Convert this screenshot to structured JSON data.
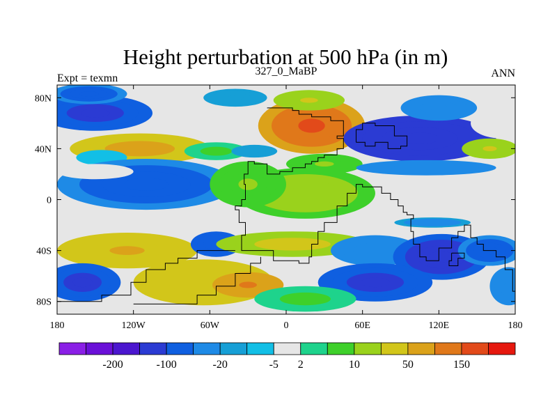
{
  "chart_data": {
    "type": "heatmap",
    "title": "Height perturbation at 500 hPa (in m)",
    "left_label": "Expt = texmn",
    "center_label": "327_0_MaBP",
    "right_label": "ANN",
    "xlim": [
      -180,
      180
    ],
    "ylim": [
      -90,
      90
    ],
    "x_ticks": [
      {
        "value": -180,
        "label": "180"
      },
      {
        "value": -120,
        "label": "120W"
      },
      {
        "value": -60,
        "label": "60W"
      },
      {
        "value": 0,
        "label": "0"
      },
      {
        "value": 60,
        "label": "60E"
      },
      {
        "value": 120,
        "label": "120E"
      },
      {
        "value": 180,
        "label": "180"
      }
    ],
    "y_ticks": [
      {
        "value": 80,
        "label": "80N"
      },
      {
        "value": 40,
        "label": "40N"
      },
      {
        "value": 0,
        "label": "0"
      },
      {
        "value": -40,
        "label": "40S"
      },
      {
        "value": -80,
        "label": "80S"
      }
    ],
    "colorbar": {
      "colors": [
        "#8a1fe6",
        "#6a10d8",
        "#4b16cf",
        "#2b3bd3",
        "#0f5fe0",
        "#1e8ae6",
        "#169fd6",
        "#12bfe6",
        "#e6e6e6",
        "#1ed38c",
        "#3ed02a",
        "#9ad21c",
        "#d2c61a",
        "#dba21a",
        "#e0781a",
        "#e24a1a",
        "#e6180e"
      ],
      "tick_labels": [
        "-200",
        "-100",
        "-20",
        "-5",
        "2",
        "10",
        "50",
        "150"
      ],
      "tick_after_index": [
        1,
        3,
        5,
        7,
        8,
        10,
        12,
        14
      ]
    },
    "field_series": [
      {
        "name": "blob",
        "lon": -150,
        "lat": 68,
        "rx": 45,
        "ry": 14,
        "value": -70
      },
      {
        "name": "blob",
        "lon": -155,
        "lat": 83,
        "rx": 30,
        "ry": 8,
        "value": -30
      },
      {
        "name": "blob",
        "lon": -40,
        "lat": 80,
        "rx": 25,
        "ry": 7,
        "value": -10
      },
      {
        "name": "blob",
        "lon": 20,
        "lat": 58,
        "rx": 42,
        "ry": 22,
        "value": 150
      },
      {
        "name": "blob",
        "lon": 18,
        "lat": 78,
        "rx": 28,
        "ry": 8,
        "value": 20
      },
      {
        "name": "blob",
        "lon": 105,
        "lat": 48,
        "rx": 60,
        "ry": 18,
        "value": -100
      },
      {
        "name": "blob",
        "lon": 120,
        "lat": 72,
        "rx": 30,
        "ry": 10,
        "value": -20
      },
      {
        "name": "blob",
        "lon": 170,
        "lat": 60,
        "rx": 25,
        "ry": 12,
        "value": 0
      },
      {
        "name": "blob",
        "lon": -115,
        "lat": 40,
        "rx": 55,
        "ry": 12,
        "value": 60
      },
      {
        "name": "blob",
        "lon": -145,
        "lat": 33,
        "rx": 20,
        "ry": 6,
        "value": -5
      },
      {
        "name": "blob",
        "lon": -55,
        "lat": 38,
        "rx": 25,
        "ry": 7,
        "value": 6
      },
      {
        "name": "blob",
        "lon": -25,
        "lat": 38,
        "rx": 18,
        "ry": 5,
        "value": -10
      },
      {
        "name": "blob",
        "lon": 160,
        "lat": 40,
        "rx": 22,
        "ry": 8,
        "value": 20
      },
      {
        "name": "blob",
        "lon": 30,
        "lat": 28,
        "rx": 30,
        "ry": 8,
        "value": 10
      },
      {
        "name": "blob",
        "lon": 110,
        "lat": 25,
        "rx": 55,
        "ry": 6,
        "value": -20
      },
      {
        "name": "blob",
        "lon": -110,
        "lat": 12,
        "rx": 70,
        "ry": 20,
        "value": -30
      },
      {
        "name": "blob",
        "lon": -150,
        "lat": 22,
        "rx": 30,
        "ry": 6,
        "value": 0
      },
      {
        "name": "blob",
        "lon": 15,
        "lat": 5,
        "rx": 55,
        "ry": 20,
        "value": 15
      },
      {
        "name": "blob",
        "lon": -30,
        "lat": 12,
        "rx": 30,
        "ry": 18,
        "value": 10
      },
      {
        "name": "blob",
        "lon": 130,
        "lat": -5,
        "rx": 50,
        "ry": 12,
        "value": 1
      },
      {
        "name": "blob",
        "lon": 115,
        "lat": -18,
        "rx": 30,
        "ry": 4,
        "value": -15
      },
      {
        "name": "blob",
        "lon": -125,
        "lat": -40,
        "rx": 55,
        "ry": 14,
        "value": 50
      },
      {
        "name": "blob",
        "lon": -55,
        "lat": -35,
        "rx": 20,
        "ry": 10,
        "value": -40
      },
      {
        "name": "blob",
        "lon": 5,
        "lat": -35,
        "rx": 60,
        "ry": 10,
        "value": 25
      },
      {
        "name": "blob",
        "lon": 70,
        "lat": -40,
        "rx": 35,
        "ry": 12,
        "value": -20
      },
      {
        "name": "blob",
        "lon": 125,
        "lat": -45,
        "rx": 25,
        "ry": 10,
        "value": 40
      },
      {
        "name": "blob",
        "lon": 122,
        "lat": -45,
        "rx": 38,
        "ry": 18,
        "value": -90
      },
      {
        "name": "blob",
        "lon": 160,
        "lat": -40,
        "rx": 25,
        "ry": 12,
        "value": -30
      },
      {
        "name": "blob",
        "lon": -65,
        "lat": -65,
        "rx": 55,
        "ry": 18,
        "value": 40
      },
      {
        "name": "blob",
        "lon": -30,
        "lat": -67,
        "rx": 28,
        "ry": 10,
        "value": 100
      },
      {
        "name": "blob",
        "lon": -160,
        "lat": -65,
        "rx": 30,
        "ry": 15,
        "value": -60
      },
      {
        "name": "blob",
        "lon": 70,
        "lat": -65,
        "rx": 45,
        "ry": 15,
        "value": -60
      },
      {
        "name": "blob",
        "lon": 175,
        "lat": -68,
        "rx": 15,
        "ry": 15,
        "value": -20
      },
      {
        "name": "blob",
        "lon": 15,
        "lat": -78,
        "rx": 40,
        "ry": 10,
        "value": 6
      }
    ],
    "continents": [
      {
        "name": "continent-north-america",
        "points": [
          [
            -15,
            72
          ],
          [
            -5,
            72
          ],
          [
            5,
            70
          ],
          [
            10,
            67
          ],
          [
            20,
            65
          ],
          [
            35,
            62
          ],
          [
            45,
            58
          ],
          [
            45,
            50
          ],
          [
            40,
            48
          ],
          [
            45,
            45
          ],
          [
            45,
            40
          ],
          [
            40,
            35
          ],
          [
            30,
            33
          ],
          [
            25,
            30
          ],
          [
            20,
            28
          ],
          [
            15,
            25
          ],
          [
            5,
            22
          ],
          [
            -5,
            20
          ],
          [
            -15,
            28
          ],
          [
            -25,
            30
          ],
          [
            -30,
            20
          ],
          [
            -33,
            12
          ],
          [
            -32,
            0
          ],
          [
            -35,
            -5
          ],
          [
            -40,
            -8
          ],
          [
            -37,
            -18
          ],
          [
            -32,
            -28
          ],
          [
            -35,
            -40
          ],
          [
            -10,
            -48
          ],
          [
            10,
            -50
          ],
          [
            18,
            -45
          ],
          [
            20,
            -35
          ],
          [
            25,
            -25
          ],
          [
            30,
            -18
          ],
          [
            40,
            -5
          ],
          [
            48,
            5
          ],
          [
            55,
            12
          ],
          [
            60,
            10
          ],
          [
            75,
            5
          ],
          [
            82,
            0
          ],
          [
            88,
            -5
          ],
          [
            92,
            -10
          ],
          [
            95,
            -12
          ],
          [
            100,
            -15
          ],
          [
            98,
            -25
          ],
          [
            100,
            -35
          ],
          [
            105,
            -45
          ],
          [
            110,
            -48
          ],
          [
            120,
            -38
          ],
          [
            130,
            -30
          ],
          [
            135,
            -25
          ],
          [
            140,
            -20
          ],
          [
            145,
            -30
          ],
          [
            150,
            -35
          ],
          [
            155,
            -40
          ],
          [
            165,
            -45
          ],
          [
            172,
            -55
          ],
          [
            178,
            -72
          ],
          [
            180,
            -75
          ]
        ]
      },
      {
        "name": "continent-south-landmass",
        "points": [
          [
            -40,
            -40
          ],
          [
            -55,
            -40
          ],
          [
            -70,
            -46
          ],
          [
            -85,
            -50
          ],
          [
            -95,
            -55
          ],
          [
            -110,
            -65
          ],
          [
            -122,
            -75
          ],
          [
            -145,
            -80
          ],
          [
            -180,
            -80
          ]
        ]
      },
      {
        "name": "continent-south-inner",
        "points": [
          [
            -120,
            -82
          ],
          [
            -95,
            -82
          ],
          [
            -70,
            -75
          ],
          [
            -55,
            -68
          ],
          [
            -40,
            -58
          ],
          [
            -28,
            -50
          ],
          [
            -20,
            -45
          ]
        ]
      },
      {
        "name": "continent-asia-east",
        "points": [
          [
            55,
            45
          ],
          [
            62,
            42
          ],
          [
            70,
            45
          ],
          [
            80,
            40
          ],
          [
            90,
            42
          ],
          [
            95,
            50
          ],
          [
            85,
            58
          ],
          [
            70,
            60
          ],
          [
            60,
            55
          ],
          [
            55,
            45
          ]
        ]
      },
      {
        "name": "continent-island",
        "points": [
          [
            130,
            -42
          ],
          [
            140,
            -46
          ],
          [
            135,
            -52
          ],
          [
            128,
            -48
          ],
          [
            130,
            -42
          ]
        ]
      }
    ]
  }
}
